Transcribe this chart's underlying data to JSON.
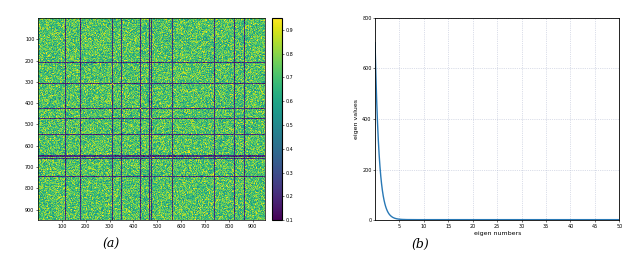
{
  "fig_width": 6.32,
  "fig_height": 2.56,
  "dpi": 100,
  "matrix_size": 950,
  "colormap_a": "viridis",
  "clim_a": [
    0.1,
    0.95
  ],
  "colorbar_ticks_a": [
    0.1,
    0.2,
    0.3,
    0.4,
    0.5,
    0.6,
    0.7,
    0.8,
    0.9
  ],
  "xticks_a": [
    100,
    200,
    300,
    400,
    500,
    600,
    700,
    800,
    900
  ],
  "yticks_a": [
    100,
    200,
    300,
    400,
    500,
    600,
    700,
    800,
    900
  ],
  "label_a": "(a)",
  "label_b": "(b)",
  "n_eigen": 50,
  "eigen_peak": 700,
  "ylim_b": [
    0,
    800
  ],
  "yticks_b": [
    0,
    200,
    400,
    600,
    800
  ],
  "xlim_b": [
    0,
    50
  ],
  "xticks_b": [
    5,
    10,
    15,
    20,
    25,
    30,
    35,
    40,
    45,
    50
  ],
  "xlabel_b": "eigen numbers",
  "ylabel_b": "eigen values",
  "line_color_b": "#2878b5",
  "grid_color": "#b0b8d0",
  "bg_color": "#ffffff",
  "n_stripes": 35,
  "base_val": 0.72,
  "stripe_val": 0.18
}
